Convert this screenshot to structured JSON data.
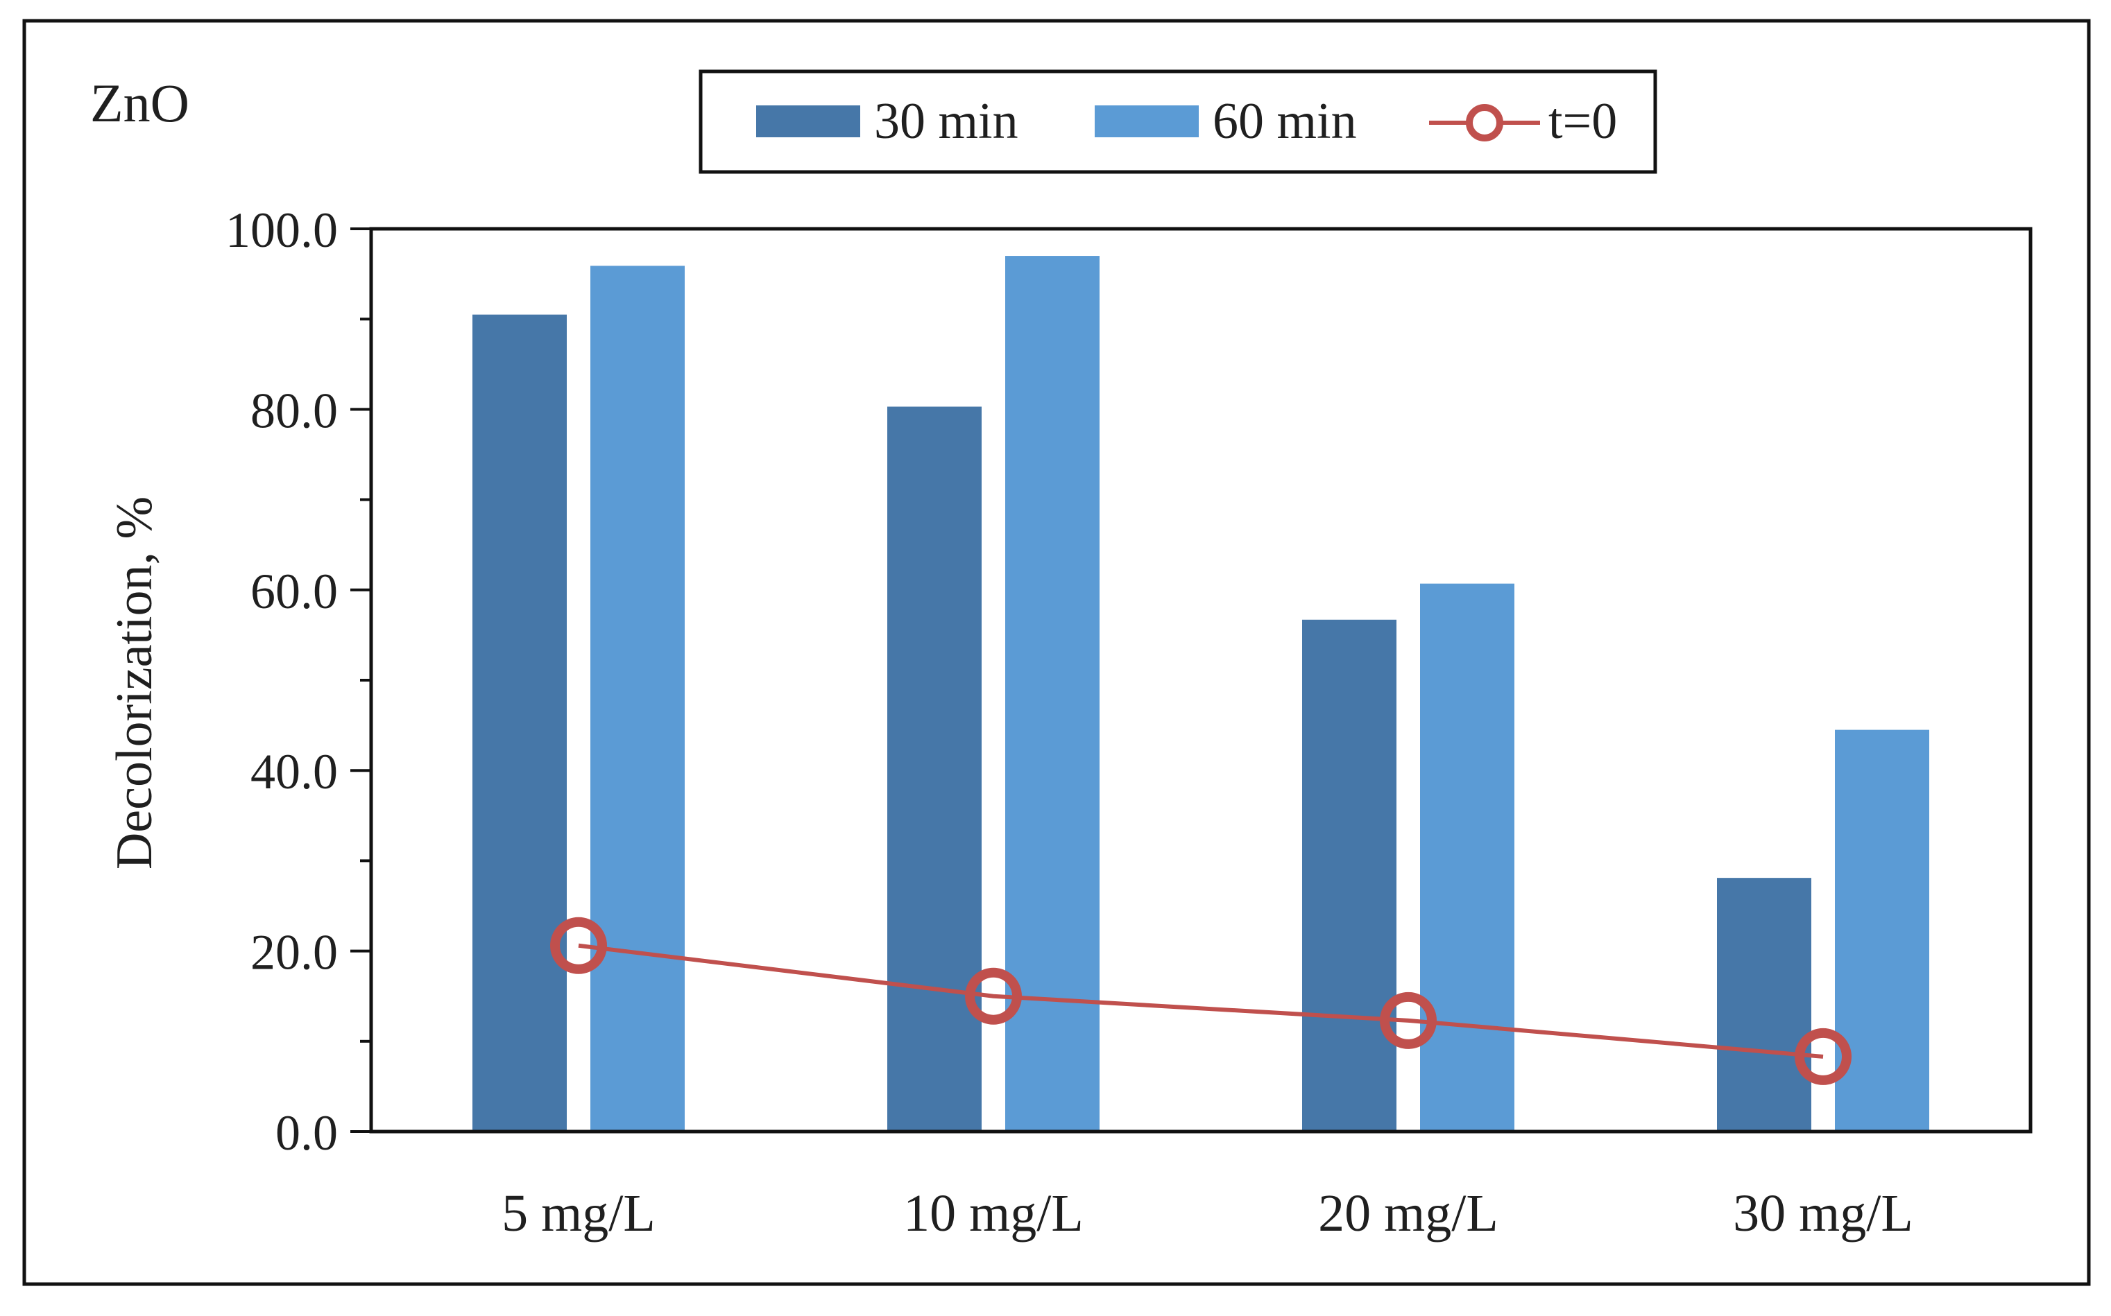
{
  "chart_data": {
    "type": "bar",
    "panel_label": "ZnO",
    "categories": [
      "5 mg/L",
      "10 mg/L",
      "20 mg/L",
      "30 mg/L"
    ],
    "series": [
      {
        "name": "30 min",
        "kind": "bar",
        "color": "#4677a8",
        "values": [
          90.5,
          80.3,
          56.7,
          28.1
        ]
      },
      {
        "name": "60 min",
        "kind": "bar",
        "color": "#5b9bd5",
        "values": [
          95.9,
          97.0,
          60.7,
          44.5
        ]
      },
      {
        "name": "t=0",
        "kind": "line",
        "marker": "open-circle",
        "color": "#c0504d",
        "values": [
          20.6,
          15.0,
          12.3,
          8.3
        ]
      }
    ],
    "xlabel": "",
    "ylabel": "Decolorization, %",
    "ylim": [
      0,
      100
    ],
    "yticks": [
      0,
      20,
      40,
      60,
      80,
      100
    ],
    "ytick_labels": [
      "0.0",
      "20.0",
      "40.0",
      "60.0",
      "80.0",
      "100.0"
    ],
    "legend_position": "top-center",
    "grid": false
  }
}
